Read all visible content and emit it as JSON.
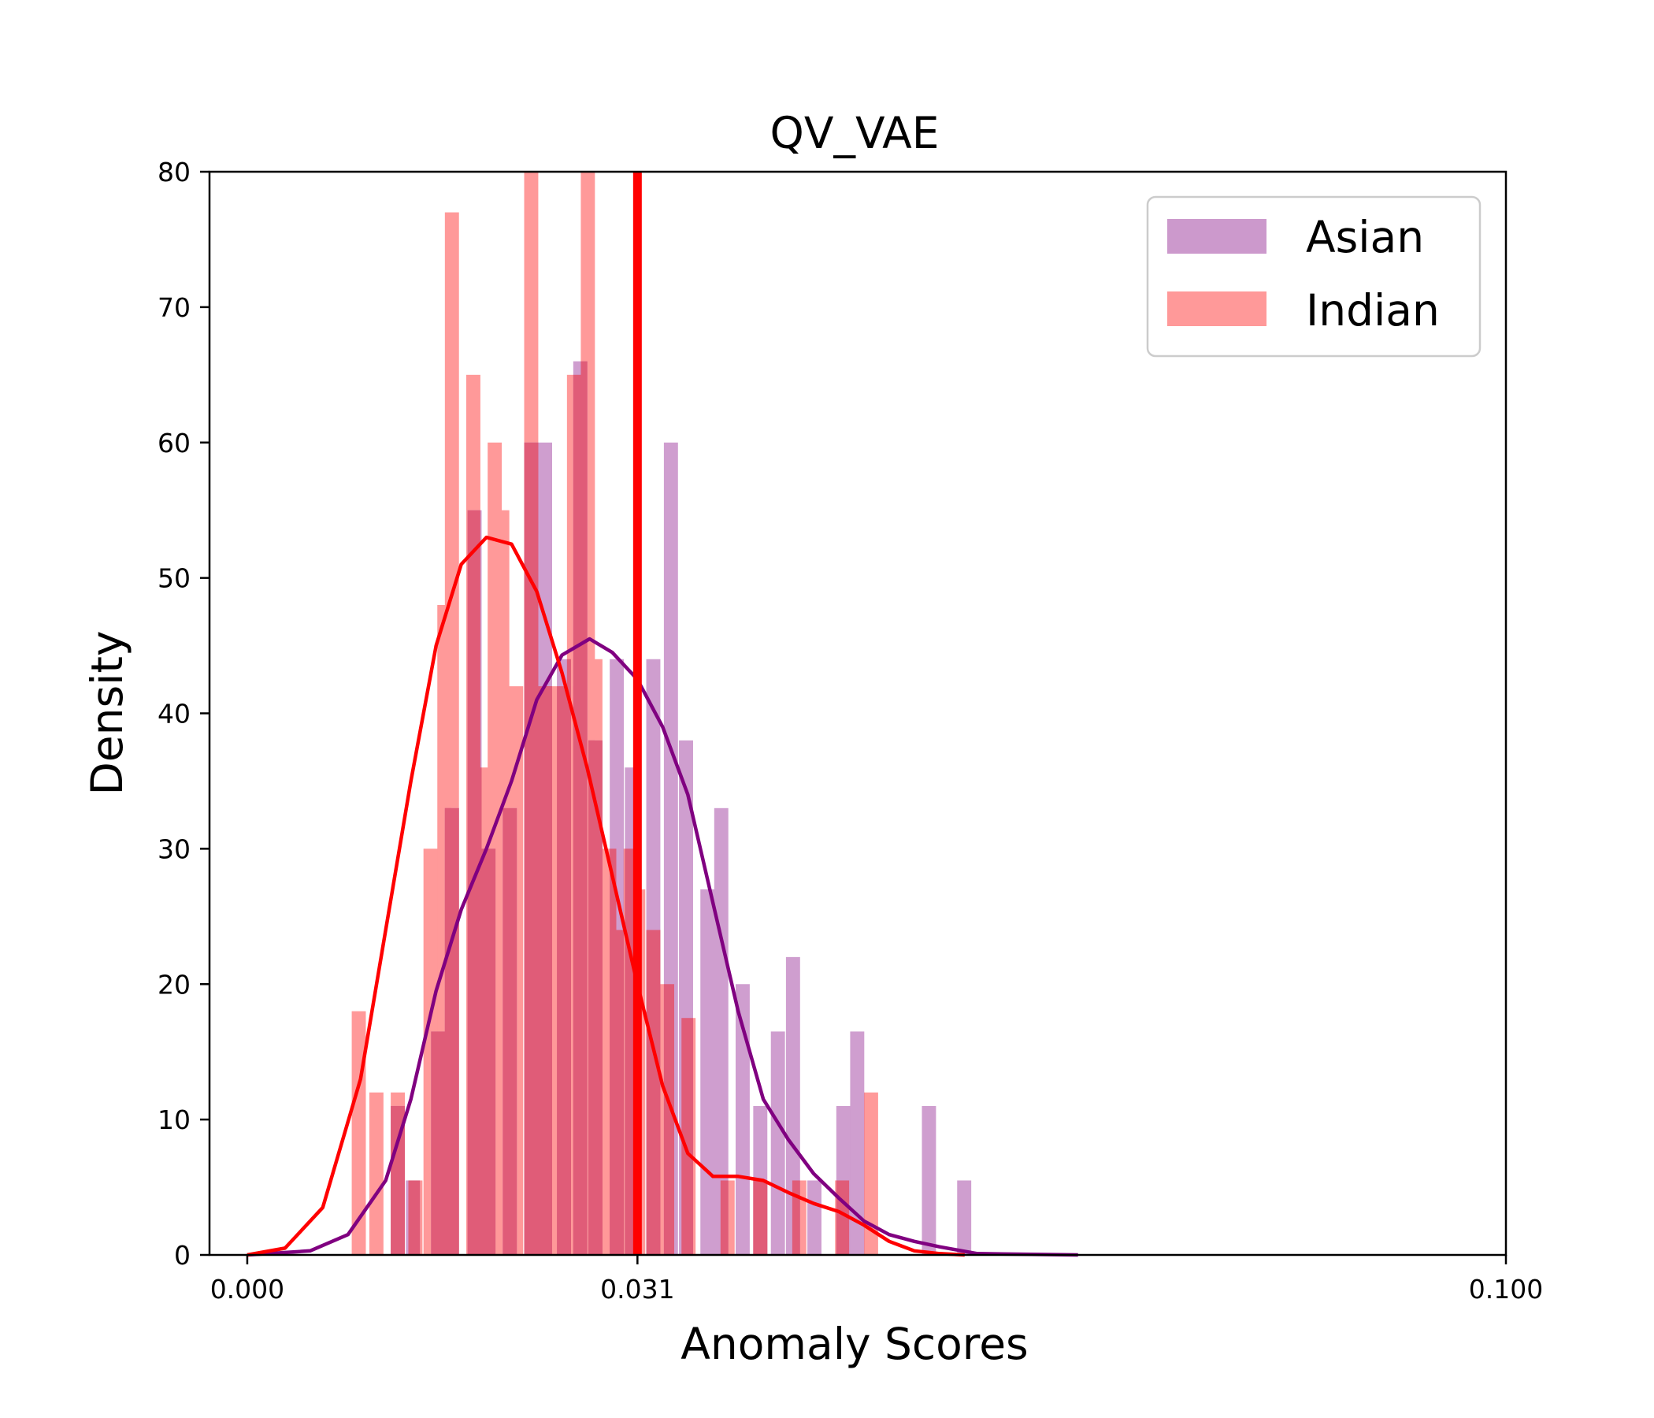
{
  "chart_data": {
    "type": "bar",
    "title": "QV_VAE",
    "xlabel": "Anomaly Scores",
    "ylabel": "Density",
    "xlim": [
      -0.003,
      0.1
    ],
    "ylim": [
      0,
      80
    ],
    "xticks": [
      {
        "value": 0.0,
        "label": "0.000"
      },
      {
        "value": 0.031,
        "label": "0.031"
      },
      {
        "value": 0.1,
        "label": "0.100"
      }
    ],
    "yticks": [
      {
        "value": 0,
        "label": "0"
      },
      {
        "value": 10,
        "label": "10"
      },
      {
        "value": 20,
        "label": "20"
      },
      {
        "value": 30,
        "label": "30"
      },
      {
        "value": 40,
        "label": "40"
      },
      {
        "value": 50,
        "label": "50"
      },
      {
        "value": 60,
        "label": "60"
      },
      {
        "value": 70,
        "label": "70"
      },
      {
        "value": 80,
        "label": "80"
      }
    ],
    "threshold": 0.031,
    "legend_position": "upper right",
    "grid": false,
    "colors": {
      "asian": "#800080",
      "indian": "#ff0000",
      "asian_fill": "#cc99cc",
      "indian_fill": "#ff9999",
      "overlap_fill": "#e05c78"
    },
    "series": [
      {
        "name": "Asian",
        "bins": [
          [
            0.0114,
            11
          ],
          [
            0.0126,
            5.5
          ],
          [
            0.0146,
            16.5
          ],
          [
            0.0157,
            33
          ],
          [
            0.0175,
            55
          ],
          [
            0.0186,
            30
          ],
          [
            0.0203,
            33
          ],
          [
            0.022,
            60
          ],
          [
            0.0231,
            60
          ],
          [
            0.0246,
            44
          ],
          [
            0.0259,
            66
          ],
          [
            0.0271,
            38
          ],
          [
            0.0288,
            44
          ],
          [
            0.03,
            36
          ],
          [
            0.0317,
            44
          ],
          [
            0.0331,
            60
          ],
          [
            0.0343,
            38
          ],
          [
            0.036,
            27
          ],
          [
            0.0371,
            33
          ],
          [
            0.0388,
            20
          ],
          [
            0.0402,
            11
          ],
          [
            0.0416,
            16.5
          ],
          [
            0.0428,
            22
          ],
          [
            0.0445,
            5.5
          ],
          [
            0.0468,
            11
          ],
          [
            0.0479,
            16.5
          ],
          [
            0.0536,
            11
          ],
          [
            0.0564,
            5.5
          ]
        ],
        "kde": [
          [
            0.0,
            0
          ],
          [
            0.005,
            0.3
          ],
          [
            0.008,
            1.5
          ],
          [
            0.011,
            5.5
          ],
          [
            0.013,
            11.5
          ],
          [
            0.015,
            19.5
          ],
          [
            0.017,
            25.5
          ],
          [
            0.019,
            30
          ],
          [
            0.021,
            35
          ],
          [
            0.023,
            41
          ],
          [
            0.025,
            44.3
          ],
          [
            0.0272,
            45.5
          ],
          [
            0.029,
            44.5
          ],
          [
            0.031,
            42.5
          ],
          [
            0.033,
            39
          ],
          [
            0.035,
            34
          ],
          [
            0.037,
            26
          ],
          [
            0.039,
            18
          ],
          [
            0.041,
            11.5
          ],
          [
            0.043,
            8.5
          ],
          [
            0.045,
            6
          ],
          [
            0.047,
            4.2
          ],
          [
            0.049,
            2.5
          ],
          [
            0.051,
            1.5
          ],
          [
            0.053,
            1.0
          ],
          [
            0.055,
            0.6
          ],
          [
            0.058,
            0.1
          ],
          [
            0.066,
            0
          ]
        ]
      },
      {
        "name": "Indian",
        "bins": [
          [
            0.0083,
            18
          ],
          [
            0.0097,
            12
          ],
          [
            0.0114,
            12
          ],
          [
            0.0128,
            5.5
          ],
          [
            0.014,
            30
          ],
          [
            0.0151,
            48
          ],
          [
            0.0157,
            77
          ],
          [
            0.0174,
            65
          ],
          [
            0.018,
            36
          ],
          [
            0.0191,
            60
          ],
          [
            0.0197,
            55
          ],
          [
            0.0208,
            42
          ],
          [
            0.022,
            80
          ],
          [
            0.0231,
            42
          ],
          [
            0.0237,
            42
          ],
          [
            0.0248,
            42
          ],
          [
            0.0254,
            65
          ],
          [
            0.0265,
            80
          ],
          [
            0.0271,
            44
          ],
          [
            0.0282,
            30
          ],
          [
            0.0288,
            24
          ],
          [
            0.0299,
            30
          ],
          [
            0.0305,
            27
          ],
          [
            0.0317,
            24
          ],
          [
            0.0328,
            20
          ],
          [
            0.0345,
            17.5
          ],
          [
            0.0376,
            5.5
          ],
          [
            0.0402,
            5.5
          ],
          [
            0.0433,
            5.5
          ],
          [
            0.0467,
            5.5
          ],
          [
            0.049,
            12
          ]
        ],
        "kde": [
          [
            0.0,
            0
          ],
          [
            0.003,
            0.5
          ],
          [
            0.006,
            3.5
          ],
          [
            0.009,
            13
          ],
          [
            0.011,
            24
          ],
          [
            0.013,
            35
          ],
          [
            0.015,
            45
          ],
          [
            0.017,
            51
          ],
          [
            0.019,
            53
          ],
          [
            0.021,
            52.5
          ],
          [
            0.023,
            49
          ],
          [
            0.025,
            43
          ],
          [
            0.027,
            36
          ],
          [
            0.029,
            28
          ],
          [
            0.031,
            20
          ],
          [
            0.033,
            12.5
          ],
          [
            0.035,
            7.5
          ],
          [
            0.037,
            5.8
          ],
          [
            0.039,
            5.8
          ],
          [
            0.041,
            5.5
          ],
          [
            0.043,
            4.6
          ],
          [
            0.045,
            3.8
          ],
          [
            0.047,
            3.2
          ],
          [
            0.049,
            2.2
          ],
          [
            0.051,
            1.0
          ],
          [
            0.053,
            0.3
          ],
          [
            0.055,
            0.1
          ],
          [
            0.057,
            0
          ]
        ]
      }
    ]
  }
}
